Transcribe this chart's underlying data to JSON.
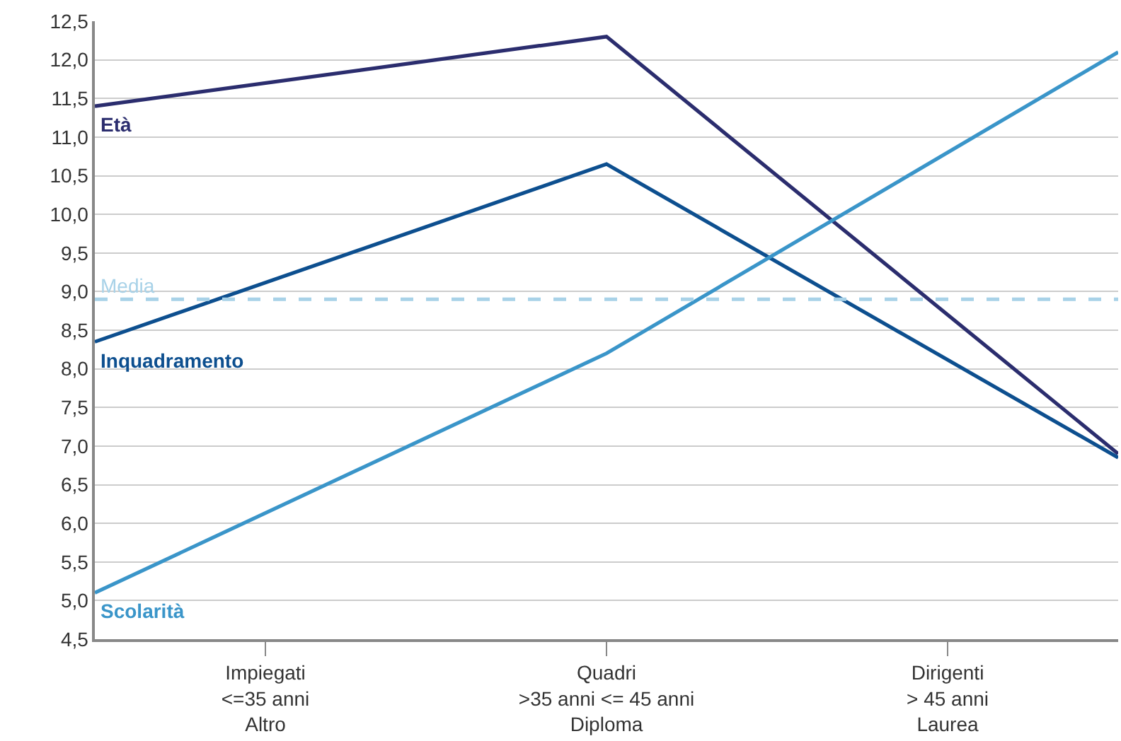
{
  "chart_data": {
    "type": "line",
    "categories": [
      null,
      "Impiegati\n<=35 anni\nAltro",
      null,
      "Quadri\n>35 anni <= 45 anni\nDiploma",
      null,
      "Dirigenti\n> 45 anni\nLaurea",
      null
    ],
    "series": [
      {
        "name": "Età",
        "color": "#2b2d6e",
        "values": [
          11.4,
          null,
          null,
          12.3,
          null,
          null,
          6.9
        ]
      },
      {
        "name": "Inquadramento",
        "color": "#0d4f8f",
        "values": [
          8.35,
          null,
          null,
          10.65,
          null,
          null,
          6.85
        ]
      },
      {
        "name": "Scolarità",
        "color": "#3a95c9",
        "values": [
          5.1,
          null,
          null,
          8.2,
          null,
          null,
          12.1
        ]
      }
    ],
    "ylim": [
      4.5,
      12.5
    ],
    "yticks": [
      {
        "value": 4.5,
        "label": "4,5"
      },
      {
        "value": 5,
        "label": "5,0"
      },
      {
        "value": 5.5,
        "label": "5,5"
      },
      {
        "value": 6,
        "label": "6,0"
      },
      {
        "value": 6.5,
        "label": "6,5"
      },
      {
        "value": 7,
        "label": "7,0"
      },
      {
        "value": 7.5,
        "label": "7,5"
      },
      {
        "value": 8,
        "label": "8,0"
      },
      {
        "value": 8.5,
        "label": "8,5"
      },
      {
        "value": 9,
        "label": "9,0"
      },
      {
        "value": 9.5,
        "label": "9,5"
      },
      {
        "value": 10,
        "label": "10,0"
      },
      {
        "value": 10.5,
        "label": "10,5"
      },
      {
        "value": 11,
        "label": "11,0"
      },
      {
        "value": 11.5,
        "label": "11,5"
      },
      {
        "value": 12,
        "label": "12,0"
      },
      {
        "value": 12.5,
        "label": "12,5"
      }
    ],
    "ref_lines": [
      {
        "axis": "y",
        "value": 8.9,
        "label": "Media",
        "color": "#a8d2e8",
        "line_style": "dashed"
      }
    ],
    "grid": "y",
    "legend": false,
    "marker": "none",
    "line_style": "solid"
  }
}
